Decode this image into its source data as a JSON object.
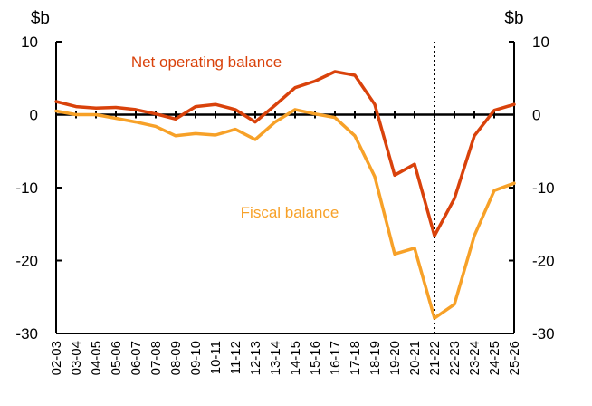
{
  "chart_data": {
    "type": "line",
    "y_unit_left": "$b",
    "y_unit_right": "$b",
    "categories": [
      "02-03",
      "03-04",
      "04-05",
      "05-06",
      "06-07",
      "07-08",
      "08-09",
      "09-10",
      "10-11",
      "11-12",
      "12-13",
      "13-14",
      "14-15",
      "15-16",
      "16-17",
      "17-18",
      "18-19",
      "19-20",
      "20-21",
      "21-22",
      "22-23",
      "23-24",
      "24-25",
      "25-26"
    ],
    "ylim": [
      -30,
      10
    ],
    "yticks": [
      10,
      0,
      -10,
      -20,
      -30
    ],
    "grid": false,
    "series": [
      {
        "name": "Net operating balance",
        "color": "#D9420B",
        "values": [
          1.8,
          1.1,
          0.9,
          1.0,
          0.7,
          0.1,
          -0.6,
          1.1,
          1.4,
          0.7,
          -1.0,
          1.3,
          3.7,
          4.6,
          5.9,
          5.4,
          1.4,
          -8.3,
          -6.8,
          -16.6,
          -11.5,
          -2.9,
          0.6,
          1.4
        ]
      },
      {
        "name": "Fiscal balance",
        "color": "#F7A128",
        "values": [
          0.5,
          0.0,
          0.0,
          -0.5,
          -1.0,
          -1.6,
          -2.9,
          -2.6,
          -2.8,
          -2.0,
          -3.4,
          -1.0,
          0.7,
          0.1,
          -0.4,
          -2.9,
          -8.5,
          -19.1,
          -18.3,
          -27.9,
          -26.0,
          -16.6,
          -10.4,
          -9.4
        ]
      }
    ],
    "reference_line": {
      "category": "21-22",
      "style": "dotted"
    }
  }
}
